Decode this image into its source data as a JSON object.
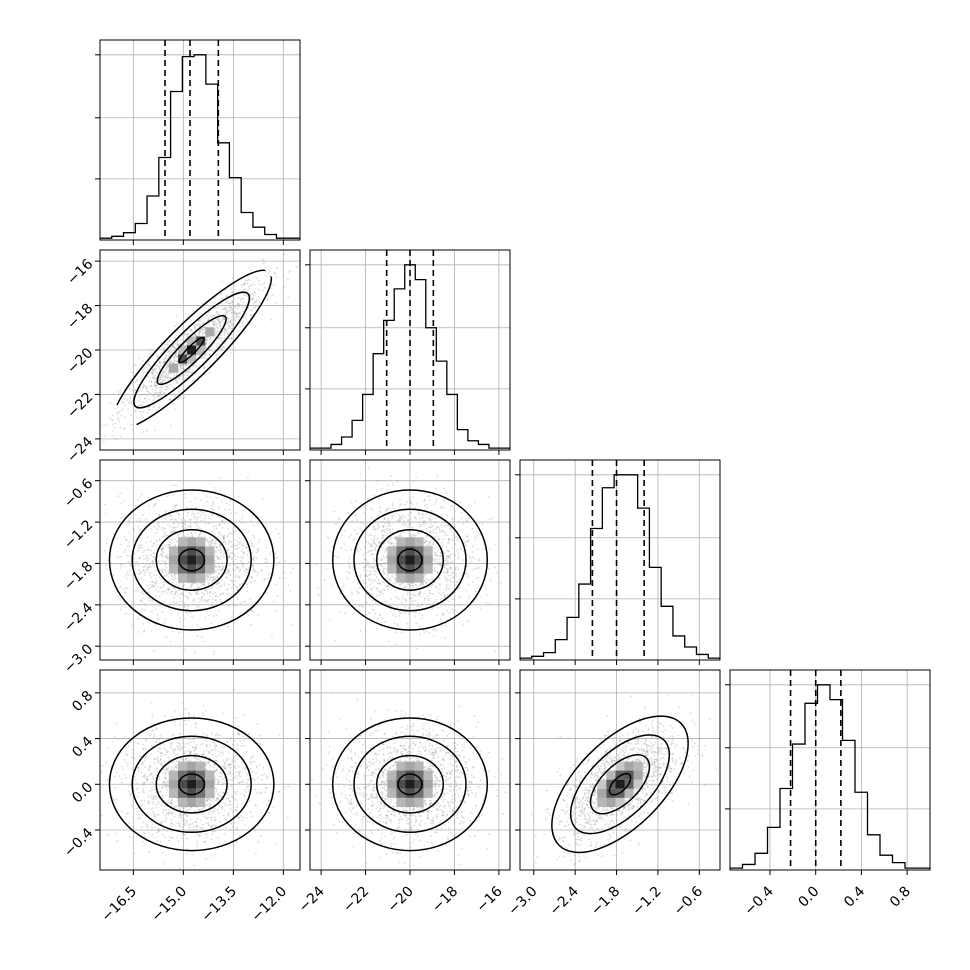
{
  "chart_data": {
    "type": "corner",
    "grid": true,
    "parameters": [
      {
        "range": [
          -17.5,
          -11.5
        ],
        "ticks": [
          -16.5,
          -15.0,
          -13.5,
          -12.0
        ],
        "tick_labels": [
          "−16.5",
          "−15.0",
          "−13.5",
          "−12.0"
        ],
        "mean": -14.75,
        "std": 0.85,
        "quantiles": [
          -15.55,
          -14.8,
          -13.95
        ]
      },
      {
        "range": [
          -24.5,
          -15.5
        ],
        "ticks": [
          -24,
          -22,
          -20,
          -18,
          -16
        ],
        "tick_labels": [
          "−24",
          "−22",
          "−20",
          "−18",
          "−16"
        ],
        "mean": -20.0,
        "std": 1.2,
        "quantiles": [
          -21.05,
          -20.0,
          -18.95
        ]
      },
      {
        "range": [
          -3.2,
          -0.3
        ],
        "ticks": [
          -3.0,
          -2.4,
          -1.8,
          -1.2,
          -0.6
        ],
        "tick_labels": [
          "−3.0",
          "−2.4",
          "−1.8",
          "−1.2",
          "−0.6"
        ],
        "mean": -1.75,
        "std": 0.35,
        "quantiles": [
          -2.15,
          -1.8,
          -1.4
        ]
      },
      {
        "range": [
          -0.75,
          1.0
        ],
        "ticks": [
          -0.4,
          0.0,
          0.4,
          0.8
        ],
        "tick_labels": [
          "−0.4",
          "0.0",
          "0.4",
          "0.8"
        ],
        "mean": 0.0,
        "std": 0.2,
        "quantiles": [
          -0.22,
          0.0,
          0.22
        ]
      }
    ],
    "correlations": {
      "1-0": 0.9,
      "2-0": 0.0,
      "2-1": 0.0,
      "3-0": 0.0,
      "3-1": 0.0,
      "3-2": 0.6
    },
    "histograms": [
      [
        1,
        2,
        4,
        9,
        24,
        45,
        81,
        100,
        101,
        85,
        53,
        34,
        15,
        7,
        3,
        1,
        1
      ],
      [
        1,
        1,
        3,
        7,
        16,
        30,
        52,
        70,
        87,
        100,
        92,
        66,
        48,
        30,
        11,
        5,
        3,
        1,
        1
      ],
      [
        1,
        2,
        4,
        11,
        23,
        41,
        71,
        93,
        100,
        100,
        82,
        50,
        29,
        13,
        7,
        3,
        1
      ],
      [
        1,
        3,
        9,
        23,
        44,
        68,
        90,
        100,
        92,
        70,
        42,
        19,
        8,
        4,
        1,
        1
      ]
    ],
    "colors": {
      "ink": "#000000",
      "grid": "#b0b0b0",
      "points": "#9a9a9a"
    }
  }
}
